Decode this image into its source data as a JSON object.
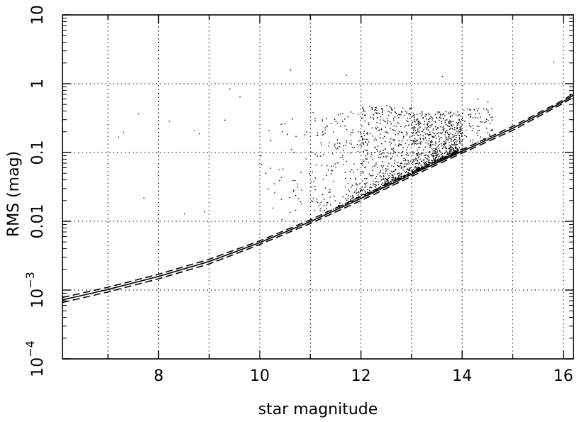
{
  "chart_data": {
    "type": "scatter",
    "title": "",
    "xlabel": "star magnitude",
    "ylabel": "RMS (mag)",
    "xlim": [
      6.1,
      16.2
    ],
    "ylim": [
      0.0001,
      10
    ],
    "yscale": "log",
    "grid": true,
    "x_ticks": [
      {
        "value": 8,
        "label": "8"
      },
      {
        "value": 10,
        "label": "10"
      },
      {
        "value": 12,
        "label": "12"
      },
      {
        "value": 14,
        "label": "14"
      },
      {
        "value": 16,
        "label": "16"
      }
    ],
    "y_ticks": [
      {
        "value": 10,
        "label": "10"
      },
      {
        "value": 1,
        "label": "1"
      },
      {
        "value": 0.1,
        "label": "0.1"
      },
      {
        "value": 0.01,
        "label": "0.01"
      },
      {
        "value": 0.001,
        "base": "10",
        "exp": "−3"
      },
      {
        "value": 0.0001,
        "base": "10",
        "exp": "−4"
      }
    ],
    "curves": [
      {
        "style": "dashed",
        "x": [
          6.1,
          7,
          8,
          9,
          10,
          11,
          12,
          13,
          14,
          15,
          16,
          16.2
        ],
        "y": [
          0.00078,
          0.0011,
          0.0017,
          0.0028,
          0.0052,
          0.0105,
          0.023,
          0.051,
          0.11,
          0.24,
          0.58,
          0.72
        ]
      },
      {
        "style": "solid",
        "x": [
          6.1,
          7,
          8,
          9,
          10,
          11,
          12,
          13,
          14,
          15,
          16,
          16.2
        ],
        "y": [
          0.00072,
          0.00102,
          0.00158,
          0.0026,
          0.0049,
          0.0099,
          0.0215,
          0.048,
          0.104,
          0.225,
          0.55,
          0.68
        ]
      },
      {
        "style": "dashed",
        "x": [
          6.1,
          7,
          8,
          9,
          10,
          11,
          12,
          13,
          14,
          15,
          16,
          16.2
        ],
        "y": [
          0.00066,
          0.00094,
          0.00146,
          0.0024,
          0.0046,
          0.0093,
          0.02,
          0.045,
          0.098,
          0.21,
          0.52,
          0.64
        ]
      }
    ],
    "scatter": {
      "description_points": [
        {
          "x": 7.2,
          "y": 0.17
        },
        {
          "x": 7.3,
          "y": 0.2
        },
        {
          "x": 7.6,
          "y": 0.37
        },
        {
          "x": 7.7,
          "y": 0.022
        },
        {
          "x": 8.2,
          "y": 0.29
        },
        {
          "x": 8.5,
          "y": 0.013
        },
        {
          "x": 8.7,
          "y": 0.21
        },
        {
          "x": 8.8,
          "y": 0.19
        },
        {
          "x": 8.9,
          "y": 0.014
        },
        {
          "x": 9.3,
          "y": 0.3
        },
        {
          "x": 9.4,
          "y": 0.85
        },
        {
          "x": 9.6,
          "y": 0.65
        },
        {
          "x": 10.6,
          "y": 1.6
        },
        {
          "x": 11.7,
          "y": 1.35
        },
        {
          "x": 15.8,
          "y": 2.1
        },
        {
          "x": 14.5,
          "y": 0.55
        },
        {
          "x": 14.3,
          "y": 0.6
        },
        {
          "x": 13.6,
          "y": 1.3
        }
      ],
      "cloud_regions": [
        {
          "x_range": [
            10.0,
            11.0
          ],
          "y_log_range": [
            -2.0,
            -0.5
          ],
          "count": 45
        },
        {
          "x_range": [
            11.0,
            12.0
          ],
          "y_log_range": [
            -1.9,
            -0.4
          ],
          "count": 160
        },
        {
          "x_range": [
            12.0,
            13.0
          ],
          "y_log_range": [
            -1.55,
            -0.3
          ],
          "count": 380
        },
        {
          "x_range": [
            13.0,
            14.0
          ],
          "y_log_range": [
            -1.25,
            -0.4
          ],
          "count": 520
        },
        {
          "x_range": [
            14.0,
            14.6
          ],
          "y_log_range": [
            -1.0,
            -0.35
          ],
          "count": 70
        }
      ],
      "locus_band": {
        "x_range": [
          11.5,
          13.9
        ],
        "offset_log": [
          0.0,
          0.16
        ],
        "count": 420
      }
    }
  }
}
